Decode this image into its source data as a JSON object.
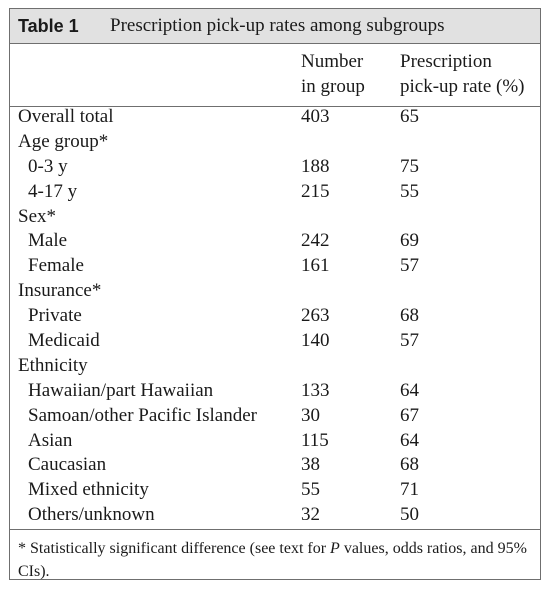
{
  "table": {
    "label": "Table 1",
    "title": "Prescription pick-up rates among subgroups",
    "col_number_line1": "Number",
    "col_number_line2": "in group",
    "col_rate_line1": "Prescription",
    "col_rate_line2": "pick-up rate (%)",
    "rows": [
      {
        "label": "Overall total",
        "n": "403",
        "rate": "65",
        "level": "top"
      },
      {
        "label": "Age group*",
        "n": "",
        "rate": "",
        "level": "top"
      },
      {
        "label": "0-3 y",
        "n": "188",
        "rate": "75",
        "level": "sub"
      },
      {
        "label": "4-17 y",
        "n": "215",
        "rate": "55",
        "level": "sub"
      },
      {
        "label": "Sex*",
        "n": "",
        "rate": "",
        "level": "top"
      },
      {
        "label": "Male",
        "n": "242",
        "rate": "69",
        "level": "sub"
      },
      {
        "label": "Female",
        "n": "161",
        "rate": "57",
        "level": "sub"
      },
      {
        "label": "Insurance*",
        "n": "",
        "rate": "",
        "level": "top"
      },
      {
        "label": "Private",
        "n": "263",
        "rate": "68",
        "level": "sub"
      },
      {
        "label": "Medicaid",
        "n": "140",
        "rate": "57",
        "level": "sub"
      },
      {
        "label": "Ethnicity",
        "n": "",
        "rate": "",
        "level": "top"
      },
      {
        "label": "Hawaiian/part Hawaiian",
        "n": "133",
        "rate": "64",
        "level": "sub"
      },
      {
        "label": "Samoan/other Pacific Islander",
        "n": "30",
        "rate": "67",
        "level": "sub"
      },
      {
        "label": "Asian",
        "n": "115",
        "rate": "64",
        "level": "sub"
      },
      {
        "label": "Caucasian",
        "n": "38",
        "rate": "68",
        "level": "sub"
      },
      {
        "label": "Mixed ethnicity",
        "n": "55",
        "rate": "71",
        "level": "sub"
      },
      {
        "label": "Others/unknown",
        "n": "32",
        "rate": "50",
        "level": "sub"
      }
    ],
    "footnote_before": "* Statistically significant difference (see text for ",
    "footnote_p": "P",
    "footnote_after": " values, odds ratios, and 95% CIs)."
  }
}
